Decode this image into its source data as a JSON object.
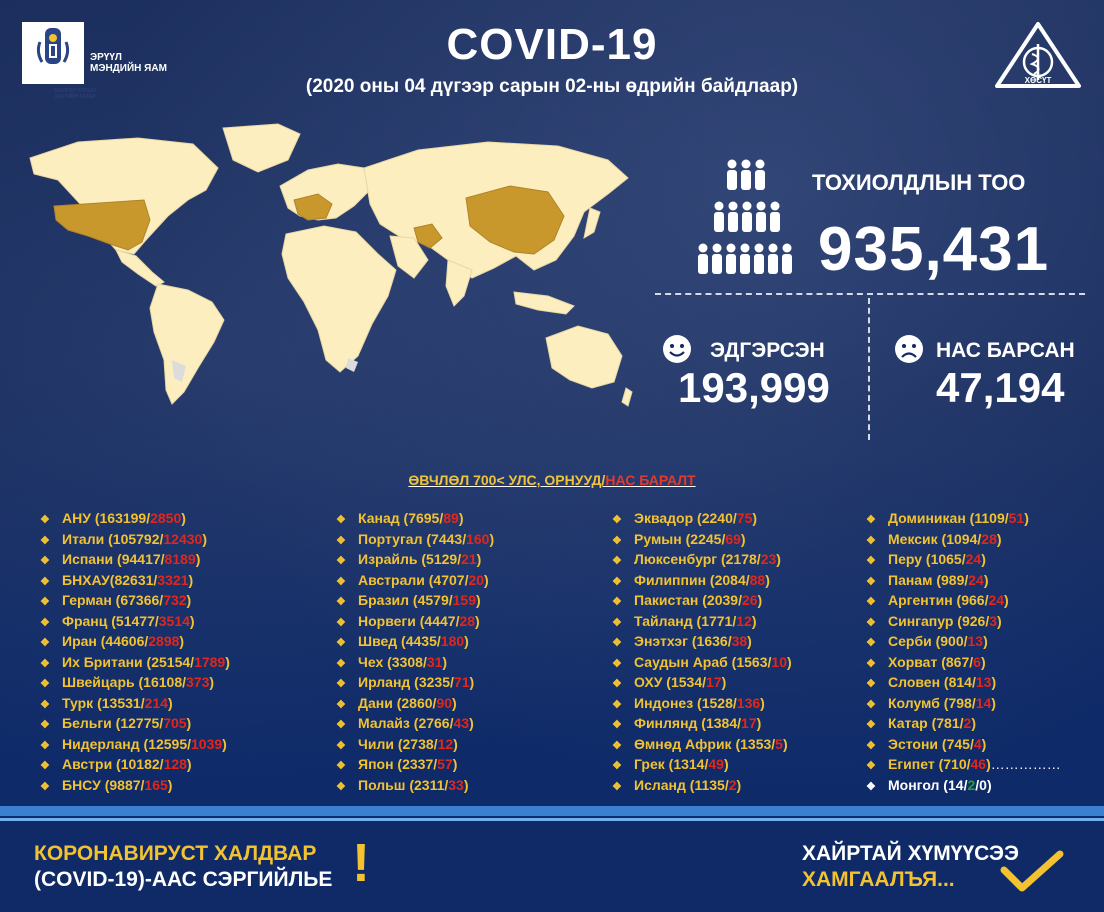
{
  "header": {
    "ministry_line1": "ЭРҮҮЛ",
    "ministry_line2": "МЭНДИЙН ЯАМ",
    "logo_caption": "МОНГОЛ УЛСЫН ЗАСГИЙН ГАЗАР",
    "title": "COVID-19",
    "subtitle": "(2020 оны 04 дүгээр сарын 02-ны өдрийн байдлаар)",
    "emblem_text": "ХӨСҮТ"
  },
  "stats": {
    "cases_label": "ТОХИОЛДЛЫН ТОО",
    "cases_value": "935,431",
    "recovered_label": "ЭДГЭРСЭН",
    "recovered_value": "193,999",
    "deaths_label": "НАС БАРСАН",
    "deaths_value": "47,194"
  },
  "list_heading": {
    "part1": "ӨВЧЛӨЛ 700< УЛС, ОРНУУД/",
    "part2": "НАС БАРАЛТ"
  },
  "columns": [
    [
      {
        "name": "АНУ",
        "cases": "163199",
        "deaths": "2850"
      },
      {
        "name": "Итали",
        "cases": "105792",
        "deaths": "12430"
      },
      {
        "name": "Испани",
        "cases": "94417",
        "deaths": "8189"
      },
      {
        "name": "БНХАУ",
        "cases": "82631",
        "deaths": "3321",
        "nospace": true
      },
      {
        "name": "Герман",
        "cases": "67366",
        "deaths": "732"
      },
      {
        "name": "Франц",
        "cases": "51477",
        "deaths": "3514"
      },
      {
        "name": "Иран",
        "cases": "44606",
        "deaths": "2898"
      },
      {
        "name": "Их Британи",
        "cases": "25154",
        "deaths": "1789"
      },
      {
        "name": "Швейцарь",
        "cases": "16108",
        "deaths": "373"
      },
      {
        "name": "Турк",
        "cases": "13531",
        "deaths": "214"
      },
      {
        "name": "Бельги",
        "cases": "12775",
        "deaths": "705"
      },
      {
        "name": "Нидерланд",
        "cases": "12595",
        "deaths": "1039"
      },
      {
        "name": "Австри",
        "cases": "10182",
        "deaths": "128"
      },
      {
        "name": "БНСУ",
        "cases": "9887",
        "deaths": "165"
      }
    ],
    [
      {
        "name": "Канад",
        "cases": "7695",
        "deaths": "89"
      },
      {
        "name": "Португал",
        "cases": "7443",
        "deaths": "160"
      },
      {
        "name": "Израйль",
        "cases": "5129",
        "deaths": "21"
      },
      {
        "name": "Австрали",
        "cases": "4707",
        "deaths": "20"
      },
      {
        "name": "Бразил",
        "cases": "4579",
        "deaths": "159"
      },
      {
        "name": "Норвеги",
        "cases": "4447",
        "deaths": "28"
      },
      {
        "name": "Швед",
        "cases": "4435",
        "deaths": "180"
      },
      {
        "name": "Чех",
        "cases": "3308",
        "deaths": "31"
      },
      {
        "name": "Ирланд",
        "cases": "3235",
        "deaths": "71"
      },
      {
        "name": "Дани",
        "cases": "2860",
        "deaths": "90"
      },
      {
        "name": "Малайз",
        "cases": "2766",
        "deaths": "43"
      },
      {
        "name": "Чили",
        "cases": "2738",
        "deaths": "12"
      },
      {
        "name": "Япон",
        "cases": "2337",
        "deaths": "57"
      },
      {
        "name": "Польш",
        "cases": "2311",
        "deaths": "33"
      }
    ],
    [
      {
        "name": "Эквадор",
        "cases": "2240",
        "deaths": "75"
      },
      {
        "name": "Румын",
        "cases": "2245",
        "deaths": "69"
      },
      {
        "name": "Люксенбург",
        "cases": "2178",
        "deaths": "23"
      },
      {
        "name": "Филиппин",
        "cases": "2084",
        "deaths": "88"
      },
      {
        "name": "Пакистан",
        "cases": "2039",
        "deaths": "26"
      },
      {
        "name": "Тайланд",
        "cases": "1771",
        "deaths": "12"
      },
      {
        "name": "Энэтхэг",
        "cases": "1636",
        "deaths": "38"
      },
      {
        "name": "Саудын Араб",
        "cases": "1563",
        "deaths": "10"
      },
      {
        "name": "ОХУ",
        "cases": "1534",
        "deaths": "17"
      },
      {
        "name": "Индонез",
        "cases": "1528",
        "deaths": "136"
      },
      {
        "name": "Финлянд",
        "cases": "1384",
        "deaths": "17"
      },
      {
        "name": "Өмнөд Африк",
        "cases": "1353",
        "deaths": "5"
      },
      {
        "name": "Грек",
        "cases": "1314",
        "deaths": "49"
      },
      {
        "name": "Исланд",
        "cases": "1135",
        "deaths": "2"
      }
    ],
    [
      {
        "name": "Доминикан",
        "cases": "1109",
        "deaths": "51"
      },
      {
        "name": "Мексик",
        "cases": "1094",
        "deaths": "28"
      },
      {
        "name": "Перу",
        "cases": "1065",
        "deaths": "24"
      },
      {
        "name": "Панам",
        "cases": "989",
        "deaths": "24"
      },
      {
        "name": "Аргентин",
        "cases": "966",
        "deaths": "24"
      },
      {
        "name": "Сингапур",
        "cases": "926",
        "deaths": "3"
      },
      {
        "name": "Серби",
        "cases": "900",
        "deaths": "13"
      },
      {
        "name": "Хорват",
        "cases": "867",
        "deaths": "6"
      },
      {
        "name": "Словен",
        "cases": "814",
        "deaths": "13"
      },
      {
        "name": "Колумб",
        "cases": "798",
        "deaths": "14"
      },
      {
        "name": "Катар",
        "cases": "781",
        "deaths": "2"
      },
      {
        "name": "Эстони",
        "cases": "745",
        "deaths": "4"
      },
      {
        "name": "Египет",
        "cases": "710",
        "deaths": "46",
        "trail": "……………"
      }
    ]
  ],
  "mongolia": {
    "name": "Монгол",
    "cases": "14",
    "recovered": "2",
    "deaths": "0"
  },
  "footer": {
    "left_line1": "КОРОНАВИРУСТ ХАЛДВАР",
    "left_line2": "(COVID-19)-ААС СЭРГИЙЛЬЕ",
    "exclaim": "!",
    "right_line1": "ХАЙРТАЙ ХҮМҮҮСЭЭ",
    "right_line2": "ХАМГААЛЪЯ..."
  },
  "colors": {
    "accent_yellow": "#f2c230",
    "death_red": "#e2261b",
    "recovered_green": "#22a33a",
    "map_land": "#fdeec0",
    "map_highlight": "#c9982c",
    "background": "#0f2a66"
  },
  "icons": {
    "people": "people-crowd-icon",
    "smile": "smile-face-icon",
    "sad": "sad-face-icon",
    "check": "check-mark-icon",
    "bullet": "diamond-bullet-icon",
    "emblem": "medical-triangle-emblem-icon",
    "logo": "mongolia-coat-of-arms-icon"
  }
}
